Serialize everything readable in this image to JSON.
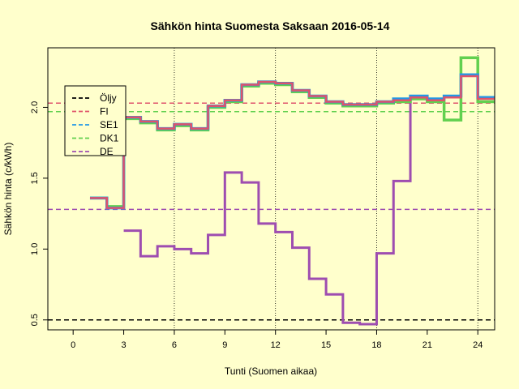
{
  "chart_data": {
    "type": "line",
    "step": true,
    "title": "Sähkön hinta Suomesta Saksaan 2016-05-14",
    "xlabel": "Tunti (Suomen aikaa)",
    "ylabel": "Sähkön hinta (c/kWh)",
    "xlim": [
      -1.5,
      25
    ],
    "ylim": [
      0.43,
      2.42
    ],
    "xticks": [
      0,
      3,
      6,
      9,
      12,
      15,
      18,
      21,
      24
    ],
    "yticks": [
      0.5,
      1.0,
      1.5,
      2.0
    ],
    "ytick_labels": [
      "0.5",
      "1.0",
      "1.5",
      "2.0"
    ],
    "vlines": [
      6,
      12,
      18,
      24
    ],
    "hours": [
      1,
      2,
      3,
      4,
      5,
      6,
      7,
      8,
      9,
      10,
      11,
      12,
      13,
      14,
      15,
      16,
      17,
      18,
      19,
      20,
      21,
      22,
      23,
      24
    ],
    "legend_position": "top-left",
    "legend_entries": [
      {
        "name": "Öljy",
        "color": "#000000"
      },
      {
        "name": "FI",
        "color": "#DF536B"
      },
      {
        "name": "SE1",
        "color": "#2297E6"
      },
      {
        "name": "DK1",
        "color": "#61D04F"
      },
      {
        "name": "DE",
        "color": "#9E4DB0"
      }
    ],
    "reference_lines": [
      {
        "name": "Öljy",
        "value": 0.5,
        "color": "#000000"
      },
      {
        "name": "FI",
        "value": 2.03,
        "color": "#DF536B"
      },
      {
        "name": "DK1",
        "value": 1.97,
        "color": "#61D04F"
      },
      {
        "name": "DE",
        "value": 1.28,
        "color": "#9E4DB0"
      }
    ],
    "series": [
      {
        "name": "FI",
        "color": "#DF536B",
        "values": [
          1.36,
          1.29,
          1.93,
          1.9,
          1.85,
          1.88,
          1.85,
          2.01,
          2.05,
          2.16,
          2.18,
          2.17,
          2.12,
          2.08,
          2.04,
          2.02,
          2.02,
          2.04,
          2.05,
          2.07,
          2.05,
          2.07,
          2.22,
          2.06
        ]
      },
      {
        "name": "SE1",
        "color": "#2297E6",
        "values": [
          1.36,
          1.29,
          1.93,
          1.9,
          1.85,
          1.88,
          1.85,
          2.01,
          2.05,
          2.16,
          2.18,
          2.17,
          2.12,
          2.08,
          2.04,
          2.02,
          2.02,
          2.04,
          2.06,
          2.08,
          2.06,
          2.08,
          2.23,
          2.07
        ]
      },
      {
        "name": "DK1",
        "color": "#61D04F",
        "values": [
          1.36,
          1.3,
          1.92,
          1.89,
          1.84,
          1.87,
          1.84,
          2.0,
          2.04,
          2.15,
          2.17,
          2.16,
          2.11,
          2.07,
          2.03,
          2.01,
          2.01,
          2.03,
          2.04,
          2.06,
          2.04,
          1.91,
          2.35,
          2.04
        ]
      },
      {
        "name": "DE",
        "color": "#9E4DB0",
        "values": [
          null,
          null,
          1.13,
          0.95,
          1.02,
          1.0,
          0.97,
          1.1,
          1.54,
          1.47,
          1.18,
          1.12,
          1.01,
          0.79,
          0.68,
          0.48,
          0.47,
          0.97,
          1.48,
          2.06,
          null,
          null,
          null,
          null
        ]
      }
    ]
  }
}
